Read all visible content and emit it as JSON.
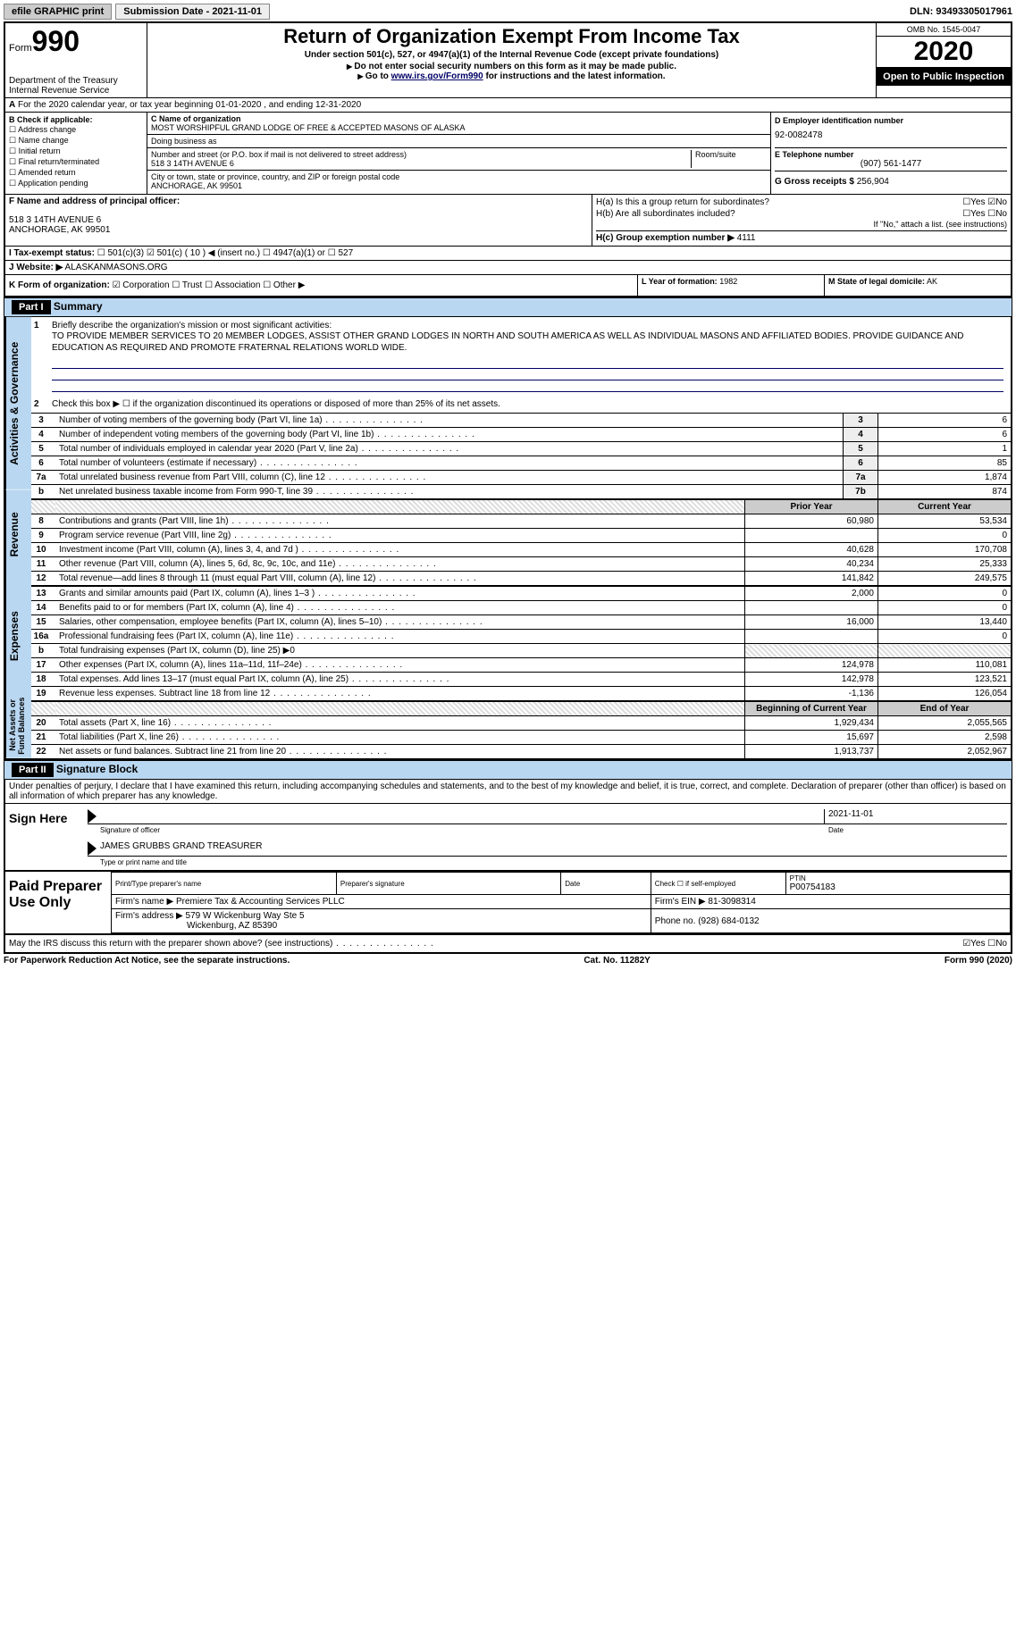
{
  "topbar": {
    "efile": "efile GRAPHIC print",
    "submission_label": "Submission Date - 2021-11-01",
    "dln": "DLN: 93493305017961"
  },
  "header": {
    "form_label": "Form",
    "form_number": "990",
    "dept1": "Department of the Treasury",
    "dept2": "Internal Revenue Service",
    "title": "Return of Organization Exempt From Income Tax",
    "subtitle": "Under section 501(c), 527, or 4947(a)(1) of the Internal Revenue Code (except private foundations)",
    "note1": "Do not enter social security numbers on this form as it may be made public.",
    "note2_pre": "Go to ",
    "note2_link": "www.irs.gov/Form990",
    "note2_post": " for instructions and the latest information.",
    "omb": "OMB No. 1545-0047",
    "year": "2020",
    "open": "Open to Public Inspection"
  },
  "line_a": {
    "text": "For the 2020 calendar year, or tax year beginning 01-01-2020   , and ending 12-31-2020"
  },
  "section_b": {
    "label": "B Check if applicable:",
    "items": [
      "Address change",
      "Name change",
      "Initial return",
      "Final return/terminated",
      "Amended return",
      "Application pending"
    ]
  },
  "section_c": {
    "name_label": "C Name of organization",
    "name": "MOST WORSHIPFUL GRAND LODGE OF FREE & ACCEPTED MASONS OF ALASKA",
    "dba_label": "Doing business as",
    "dba": "",
    "addr_label": "Number and street (or P.O. box if mail is not delivered to street address)",
    "room_label": "Room/suite",
    "addr": "518 3 14TH AVENUE 6",
    "city_label": "City or town, state or province, country, and ZIP or foreign postal code",
    "city": "ANCHORAGE, AK  99501"
  },
  "section_d": {
    "label": "D Employer identification number",
    "ein": "92-0082478"
  },
  "section_e": {
    "label": "E Telephone number",
    "phone": "(907) 561-1477"
  },
  "section_g": {
    "label": "G Gross receipts $",
    "amount": "256,904"
  },
  "section_f": {
    "label": "F  Name and address of principal officer:",
    "addr1": "518 3 14TH AVENUE 6",
    "addr2": "ANCHORAGE, AK  99501"
  },
  "section_h": {
    "ha": "H(a)  Is this a group return for subordinates?",
    "ha_ans": "☐Yes ☑No",
    "hb": "H(b)  Are all subordinates included?",
    "hb_ans": "☐Yes ☐No",
    "hb_note": "If \"No,\" attach a list. (see instructions)",
    "hc_label": "H(c)  Group exemption number ▶",
    "hc_val": "4111"
  },
  "section_i": {
    "label": "I   Tax-exempt status:",
    "opts": "☐ 501(c)(3)   ☑ 501(c) ( 10 ) ◀ (insert no.)   ☐ 4947(a)(1) or   ☐ 527"
  },
  "section_j": {
    "label": "J   Website: ▶",
    "site": "ALASKANMASONS.ORG"
  },
  "section_k": {
    "label": "K Form of organization:",
    "opts": "☑ Corporation ☐ Trust ☐ Association ☐ Other ▶"
  },
  "section_l": {
    "label": "L Year of formation:",
    "val": "1982"
  },
  "section_m": {
    "label": "M State of legal domicile:",
    "val": "AK"
  },
  "part1": {
    "header": "Part I",
    "title": "Summary",
    "mission_label": "Briefly describe the organization's mission or most significant activities:",
    "mission": "TO PROVIDE MEMBER SERVICES TO 20 MEMBER LODGES, ASSIST OTHER GRAND LODGES IN NORTH AND SOUTH AMERICA AS WELL AS INDIVIDUAL MASONS AND AFFILIATED BODIES. PROVIDE GUIDANCE AND EDUCATION AS REQUIRED AND PROMOTE FRATERNAL RELATIONS WORLD WIDE.",
    "line2": "Check this box ▶ ☐ if the organization discontinued its operations or disposed of more than 25% of its net assets.",
    "rows_gov": [
      {
        "n": "3",
        "desc": "Number of voting members of the governing body (Part VI, line 1a)",
        "box": "3",
        "val": "6"
      },
      {
        "n": "4",
        "desc": "Number of independent voting members of the governing body (Part VI, line 1b)",
        "box": "4",
        "val": "6"
      },
      {
        "n": "5",
        "desc": "Total number of individuals employed in calendar year 2020 (Part V, line 2a)",
        "box": "5",
        "val": "1"
      },
      {
        "n": "6",
        "desc": "Total number of volunteers (estimate if necessary)",
        "box": "6",
        "val": "85"
      },
      {
        "n": "7a",
        "desc": "Total unrelated business revenue from Part VIII, column (C), line 12",
        "box": "7a",
        "val": "1,874"
      },
      {
        "n": "b",
        "desc": "Net unrelated business taxable income from Form 990-T, line 39",
        "box": "7b",
        "val": "874"
      }
    ],
    "hdr_prior": "Prior Year",
    "hdr_current": "Current Year",
    "rows_rev": [
      {
        "n": "8",
        "desc": "Contributions and grants (Part VIII, line 1h)",
        "prior": "60,980",
        "cur": "53,534"
      },
      {
        "n": "9",
        "desc": "Program service revenue (Part VIII, line 2g)",
        "prior": "",
        "cur": "0"
      },
      {
        "n": "10",
        "desc": "Investment income (Part VIII, column (A), lines 3, 4, and 7d )",
        "prior": "40,628",
        "cur": "170,708"
      },
      {
        "n": "11",
        "desc": "Other revenue (Part VIII, column (A), lines 5, 6d, 8c, 9c, 10c, and 11e)",
        "prior": "40,234",
        "cur": "25,333"
      },
      {
        "n": "12",
        "desc": "Total revenue—add lines 8 through 11 (must equal Part VIII, column (A), line 12)",
        "prior": "141,842",
        "cur": "249,575"
      }
    ],
    "rows_exp": [
      {
        "n": "13",
        "desc": "Grants and similar amounts paid (Part IX, column (A), lines 1–3 )",
        "prior": "2,000",
        "cur": "0"
      },
      {
        "n": "14",
        "desc": "Benefits paid to or for members (Part IX, column (A), line 4)",
        "prior": "",
        "cur": "0"
      },
      {
        "n": "15",
        "desc": "Salaries, other compensation, employee benefits (Part IX, column (A), lines 5–10)",
        "prior": "16,000",
        "cur": "13,440"
      },
      {
        "n": "16a",
        "desc": "Professional fundraising fees (Part IX, column (A), line 11e)",
        "prior": "",
        "cur": "0"
      },
      {
        "n": "b",
        "desc": "Total fundraising expenses (Part IX, column (D), line 25) ▶0",
        "prior": "STRIPE",
        "cur": "STRIPE"
      },
      {
        "n": "17",
        "desc": "Other expenses (Part IX, column (A), lines 11a–11d, 11f–24e)",
        "prior": "124,978",
        "cur": "110,081"
      },
      {
        "n": "18",
        "desc": "Total expenses. Add lines 13–17 (must equal Part IX, column (A), line 25)",
        "prior": "142,978",
        "cur": "123,521"
      },
      {
        "n": "19",
        "desc": "Revenue less expenses. Subtract line 18 from line 12",
        "prior": "-1,136",
        "cur": "126,054"
      }
    ],
    "hdr_beg": "Beginning of Current Year",
    "hdr_end": "End of Year",
    "rows_net": [
      {
        "n": "20",
        "desc": "Total assets (Part X, line 16)",
        "prior": "1,929,434",
        "cur": "2,055,565"
      },
      {
        "n": "21",
        "desc": "Total liabilities (Part X, line 26)",
        "prior": "15,697",
        "cur": "2,598"
      },
      {
        "n": "22",
        "desc": "Net assets or fund balances. Subtract line 21 from line 20",
        "prior": "1,913,737",
        "cur": "2,052,967"
      }
    ]
  },
  "part2": {
    "header": "Part II",
    "title": "Signature Block",
    "declaration": "Under penalties of perjury, I declare that I have examined this return, including accompanying schedules and statements, and to the best of my knowledge and belief, it is true, correct, and complete. Declaration of preparer (other than officer) is based on all information of which preparer has any knowledge.",
    "sign_here": "Sign Here",
    "sig_officer_label": "Signature of officer",
    "date_label": "Date",
    "date_val": "2021-11-01",
    "name_title": "JAMES GRUBBS  GRAND TREASURER",
    "name_title_label": "Type or print name and title",
    "paid_label": "Paid Preparer Use Only",
    "prep_name_label": "Print/Type preparer's name",
    "prep_sig_label": "Preparer's signature",
    "prep_date_label": "Date",
    "check_self": "Check ☐ if self-employed",
    "ptin_label": "PTIN",
    "ptin": "P00754183",
    "firm_name_label": "Firm's name    ▶",
    "firm_name": "Premiere Tax & Accounting Services PLLC",
    "firm_ein_label": "Firm's EIN ▶",
    "firm_ein": "81-3098314",
    "firm_addr_label": "Firm's address ▶",
    "firm_addr1": "579 W Wickenburg Way Ste 5",
    "firm_addr2": "Wickenburg, AZ  85390",
    "firm_phone_label": "Phone no.",
    "firm_phone": "(928) 684-0132",
    "discuss": "May the IRS discuss this return with the preparer shown above? (see instructions)",
    "discuss_ans": "☑Yes ☐No"
  },
  "footer": {
    "left": "For Paperwork Reduction Act Notice, see the separate instructions.",
    "center": "Cat. No. 11282Y",
    "right": "Form 990 (2020)"
  }
}
